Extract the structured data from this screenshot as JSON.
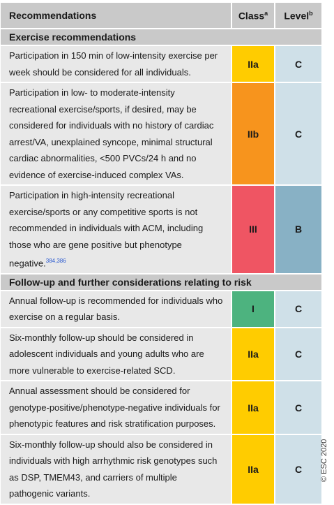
{
  "header": {
    "recommendations": "Recommendations",
    "class": "Class",
    "class_sup": "a",
    "level": "Level",
    "level_sup": "b"
  },
  "sections": [
    {
      "title": "Exercise recommendations",
      "rows": [
        {
          "text": "Participation in 150 min of low-intensity exercise per week should be considered for all individuals.",
          "ref": "",
          "class": "IIa",
          "level": "C",
          "class_color": "#ffcc00",
          "level_color": "#cfe0e8"
        },
        {
          "text": "Participation in low- to moderate-intensity recreational exercise/sports, if desired, may be considered for individuals with no history of cardiac arrest/VA, unexplained syncope, minimal structural cardiac abnormalities, <500 PVCs/24 h and no evidence of exercise-induced complex VAs.",
          "ref": "",
          "class": "IIb",
          "level": "C",
          "class_color": "#f7941d",
          "level_color": "#cfe0e8"
        },
        {
          "text": "Participation in high-intensity recreational exercise/sports or any competitive sports is not recommended in individuals with ACM, including those who are gene positive but phenotype negative.",
          "ref": "384,386",
          "class": "III",
          "level": "B",
          "class_color": "#ef5563",
          "level_color": "#88b1c5"
        }
      ]
    },
    {
      "title": "Follow-up and further considerations relating to risk",
      "rows": [
        {
          "text": "Annual follow-up is recommended for individuals who exercise on a regular basis.",
          "ref": "",
          "class": "I",
          "level": "C",
          "class_color": "#4db37f",
          "level_color": "#cfe0e8"
        },
        {
          "text": "Six-monthly follow-up should be considered in adolescent individuals and young adults who are more vulnerable to exercise-related SCD.",
          "ref": "",
          "class": "IIa",
          "level": "C",
          "class_color": "#ffcc00",
          "level_color": "#cfe0e8"
        },
        {
          "text": "Annual assessment should be considered for genotype-positive/phenotype-negative individuals for phenotypic features and risk stratification purposes.",
          "ref": "",
          "class": "IIa",
          "level": "C",
          "class_color": "#ffcc00",
          "level_color": "#cfe0e8"
        },
        {
          "text": "Six-monthly follow-up should also be considered in individuals with high arrhythmic risk genotypes such as DSP, TMEM43, and carriers of multiple pathogenic variants.",
          "ref": "",
          "class": "IIa",
          "level": "C",
          "class_color": "#ffcc00",
          "level_color": "#cfe0e8"
        }
      ]
    }
  ],
  "footer": {
    "copyright": "© ESC 2020"
  }
}
